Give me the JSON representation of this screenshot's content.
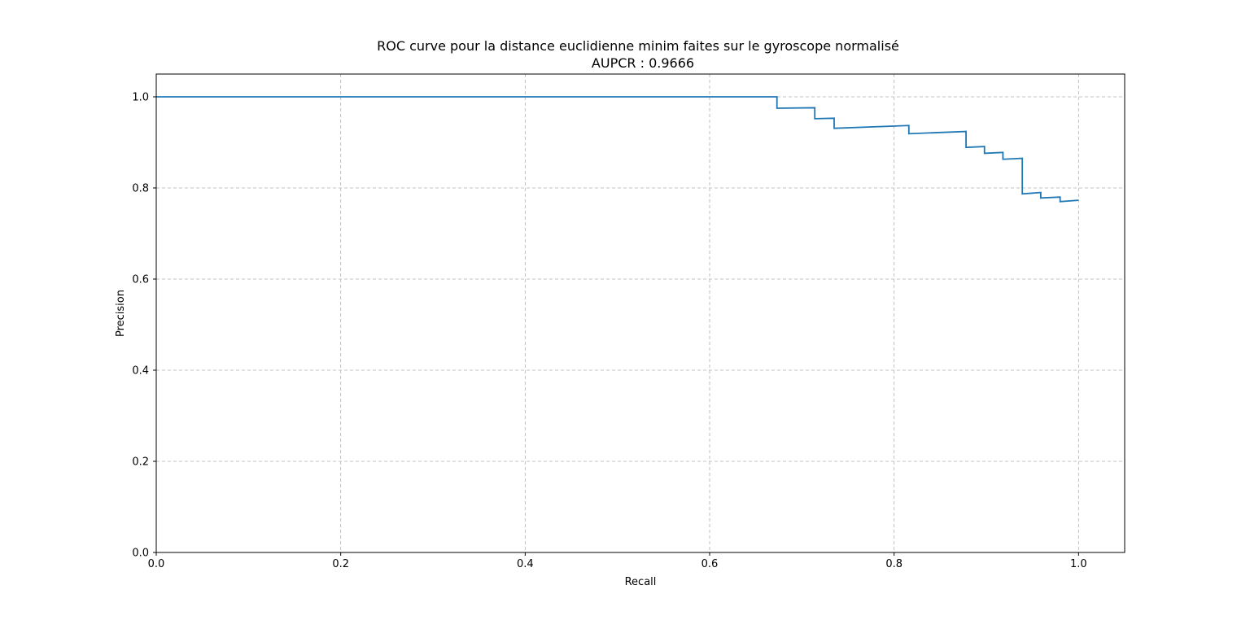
{
  "chart_data": {
    "type": "line",
    "title": "ROC curve pour la distance euclidienne minim faites sur le gyroscope normalisé",
    "subtitle": "AUPCR : 0.9666",
    "xlabel": "Recall",
    "ylabel": "Precision",
    "xlim": [
      0.0,
      1.05
    ],
    "ylim": [
      0.0,
      1.05
    ],
    "x_ticks": [
      "0.0",
      "0.2",
      "0.4",
      "0.6",
      "0.8",
      "1.0"
    ],
    "y_ticks": [
      "0.0",
      "0.2",
      "0.4",
      "0.6",
      "0.8",
      "1.0"
    ],
    "grid": true,
    "line_color": "#1f77b4",
    "grid_color": "#b0b0b0",
    "series": [
      {
        "x": [
          0.0,
          0.673,
          0.673,
          0.714,
          0.714,
          0.735,
          0.735,
          0.816,
          0.816,
          0.878,
          0.878,
          0.898,
          0.898,
          0.918,
          0.918,
          0.939,
          0.939,
          0.959,
          0.959,
          0.98,
          0.98,
          1.0
        ],
        "y": [
          1.0,
          1.0,
          0.975,
          0.976,
          0.952,
          0.953,
          0.931,
          0.937,
          0.919,
          0.924,
          0.889,
          0.891,
          0.876,
          0.878,
          0.863,
          0.865,
          0.787,
          0.79,
          0.778,
          0.78,
          0.77,
          0.773
        ]
      }
    ]
  }
}
